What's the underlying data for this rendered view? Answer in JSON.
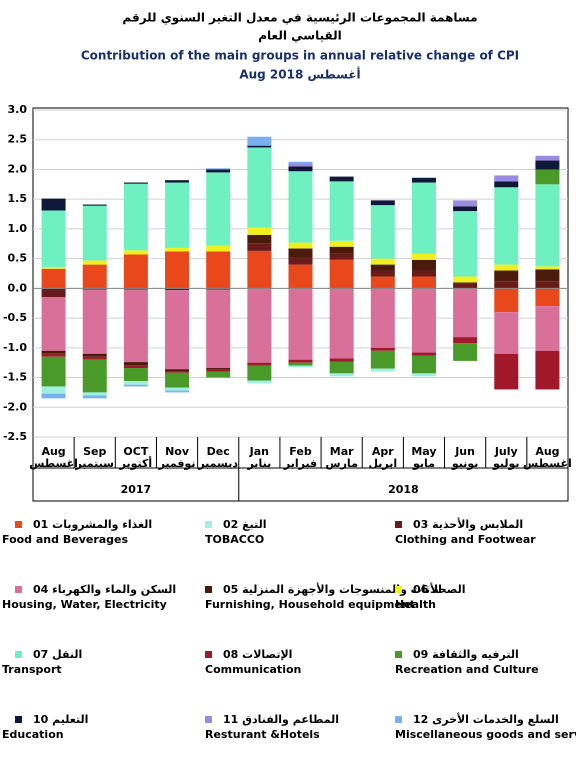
{
  "chart_data": {
    "type": "stacked_bar",
    "title_ar": [
      "مساهمة المجموعات الرئيسية في معدل التغير السنوي للرقم",
      "القياسي العام"
    ],
    "title": "Contribution of the main groups in  annual relative change of  CPI",
    "subtitle": "Aug 2018 أغسطس",
    "categories": [
      "Aug",
      "Sep",
      "OCT",
      "Nov",
      "Dec",
      "Jan",
      "Feb",
      "Mar",
      "Apr",
      "May",
      "Jun",
      "July",
      "Aug"
    ],
    "categories_ar": [
      "اغسطس",
      "سبتمبر",
      "أكتوبر",
      "نوفمبر",
      "ديسمبر",
      "يناير",
      "فبراير",
      "مارس",
      "ابريل",
      "مايو",
      "يونيو",
      "يوليو",
      "اغسطس"
    ],
    "years": [
      "2017",
      "2018"
    ],
    "ylim": [
      -2.5,
      3.0
    ],
    "yticks": [
      {
        "value": 3.0,
        "label": "3.0"
      },
      {
        "value": 2.5,
        "label": "2.5"
      },
      {
        "value": 2.0,
        "label": "2.0"
      },
      {
        "value": 1.5,
        "label": "1.5"
      },
      {
        "value": 1.0,
        "label": "1.0"
      },
      {
        "value": 0.5,
        "label": "0.5"
      },
      {
        "value": 0.0,
        "label": "0.0"
      },
      {
        "value": -0.5,
        "label": "-0.5"
      },
      {
        "value": -1.0,
        "label": "-1.0"
      },
      {
        "value": -1.5,
        "label": "-1.5"
      },
      {
        "value": -2.0,
        "label": "-2.0"
      },
      {
        "value": -2.5,
        "label": "-2.5"
      }
    ],
    "series": [
      {
        "name": "Food and Beverages",
        "name_ar": "01 الغذاء والمشروبات",
        "color": "#e8481c",
        "values": [
          0.33,
          0.4,
          0.57,
          0.62,
          0.62,
          0.63,
          0.4,
          0.48,
          0.2,
          0.2,
          0.0,
          -0.4,
          -0.3
        ]
      },
      {
        "name": "TOBACCO",
        "name_ar": "02 التبغ",
        "color": "#9ff0e0",
        "values": [
          -0.12,
          -0.05,
          -0.06,
          -0.05,
          0.0,
          -0.05,
          -0.03,
          -0.05,
          -0.05,
          -0.05,
          0.0,
          0.0,
          0.0
        ]
      },
      {
        "name": "Clothing and Footwear",
        "name_ar": "03 الملابس والأحذية",
        "color": "#6b1a1a",
        "values": [
          -0.15,
          -0.02,
          -0.02,
          -0.03,
          -0.02,
          0.12,
          0.12,
          0.1,
          0.1,
          0.1,
          0.08,
          0.12,
          0.12
        ]
      },
      {
        "name": "Housing, Water, Electricity",
        "name_ar": "04 السكن والماء والكهرباء",
        "color": "#d9709a",
        "values": [
          -0.9,
          -1.08,
          -1.22,
          -1.33,
          -1.32,
          -1.25,
          -1.2,
          -1.18,
          -1.0,
          -1.08,
          -0.82,
          -0.7,
          -0.75
        ]
      },
      {
        "name": "Furnishing, Household equipment",
        "name_ar": "05 الأثاث والمنسوجات والأجهزة المنزلية",
        "color": "#4a1a0a",
        "values": [
          -0.05,
          -0.05,
          -0.05,
          -0.03,
          -0.03,
          0.15,
          0.15,
          0.12,
          0.1,
          0.18,
          0.02,
          0.18,
          0.2
        ]
      },
      {
        "name": "Health",
        "name_ar": "06 الصحة",
        "color": "#f0f020",
        "values": [
          0.03,
          0.07,
          0.07,
          0.06,
          0.1,
          0.12,
          0.1,
          0.1,
          0.1,
          0.1,
          0.1,
          0.1,
          0.05
        ]
      },
      {
        "name": "Transport",
        "name_ar": "07 النقل",
        "color": "#6ff0c0",
        "values": [
          0.95,
          0.92,
          1.12,
          1.1,
          1.23,
          1.35,
          1.2,
          1.0,
          0.9,
          1.2,
          1.1,
          1.3,
          1.38
        ]
      },
      {
        "name": "Communication",
        "name_ar": "08 الإتصالات",
        "color": "#a0182a",
        "values": [
          -0.05,
          -0.05,
          -0.05,
          -0.03,
          -0.03,
          -0.05,
          -0.05,
          -0.05,
          -0.05,
          -0.05,
          -0.1,
          -0.6,
          -0.65
        ]
      },
      {
        "name": "Recreation and Culture",
        "name_ar": "09 الترفيه والثقافة",
        "color": "#4a9a2a",
        "values": [
          -0.5,
          -0.55,
          -0.22,
          -0.25,
          -0.1,
          -0.25,
          -0.05,
          -0.2,
          -0.3,
          -0.3,
          -0.3,
          0.0,
          0.25
        ]
      },
      {
        "name": "Education",
        "name_ar": "10 التعليم",
        "color": "#10183a",
        "values": [
          0.2,
          0.02,
          0.02,
          0.04,
          0.05,
          0.03,
          0.08,
          0.08,
          0.08,
          0.08,
          0.08,
          0.1,
          0.15
        ]
      },
      {
        "name": "Resturant &Hotels",
        "name_ar": "11 المطاعم والفنادق",
        "color": "#9a8ae0",
        "values": [
          0.0,
          0.0,
          0.0,
          0.0,
          0.0,
          0.0,
          0.05,
          0.0,
          0.0,
          0.0,
          0.1,
          0.1,
          0.08
        ]
      },
      {
        "name": "Miscellaneous goods and services",
        "name_ar": "12 السلع والخدمات الأخرى",
        "color": "#7ab0f0",
        "values": [
          -0.08,
          -0.05,
          -0.03,
          -0.03,
          0.02,
          0.15,
          0.03,
          0.0,
          0.0,
          0.0,
          0.0,
          0.0,
          0.0
        ]
      }
    ]
  }
}
